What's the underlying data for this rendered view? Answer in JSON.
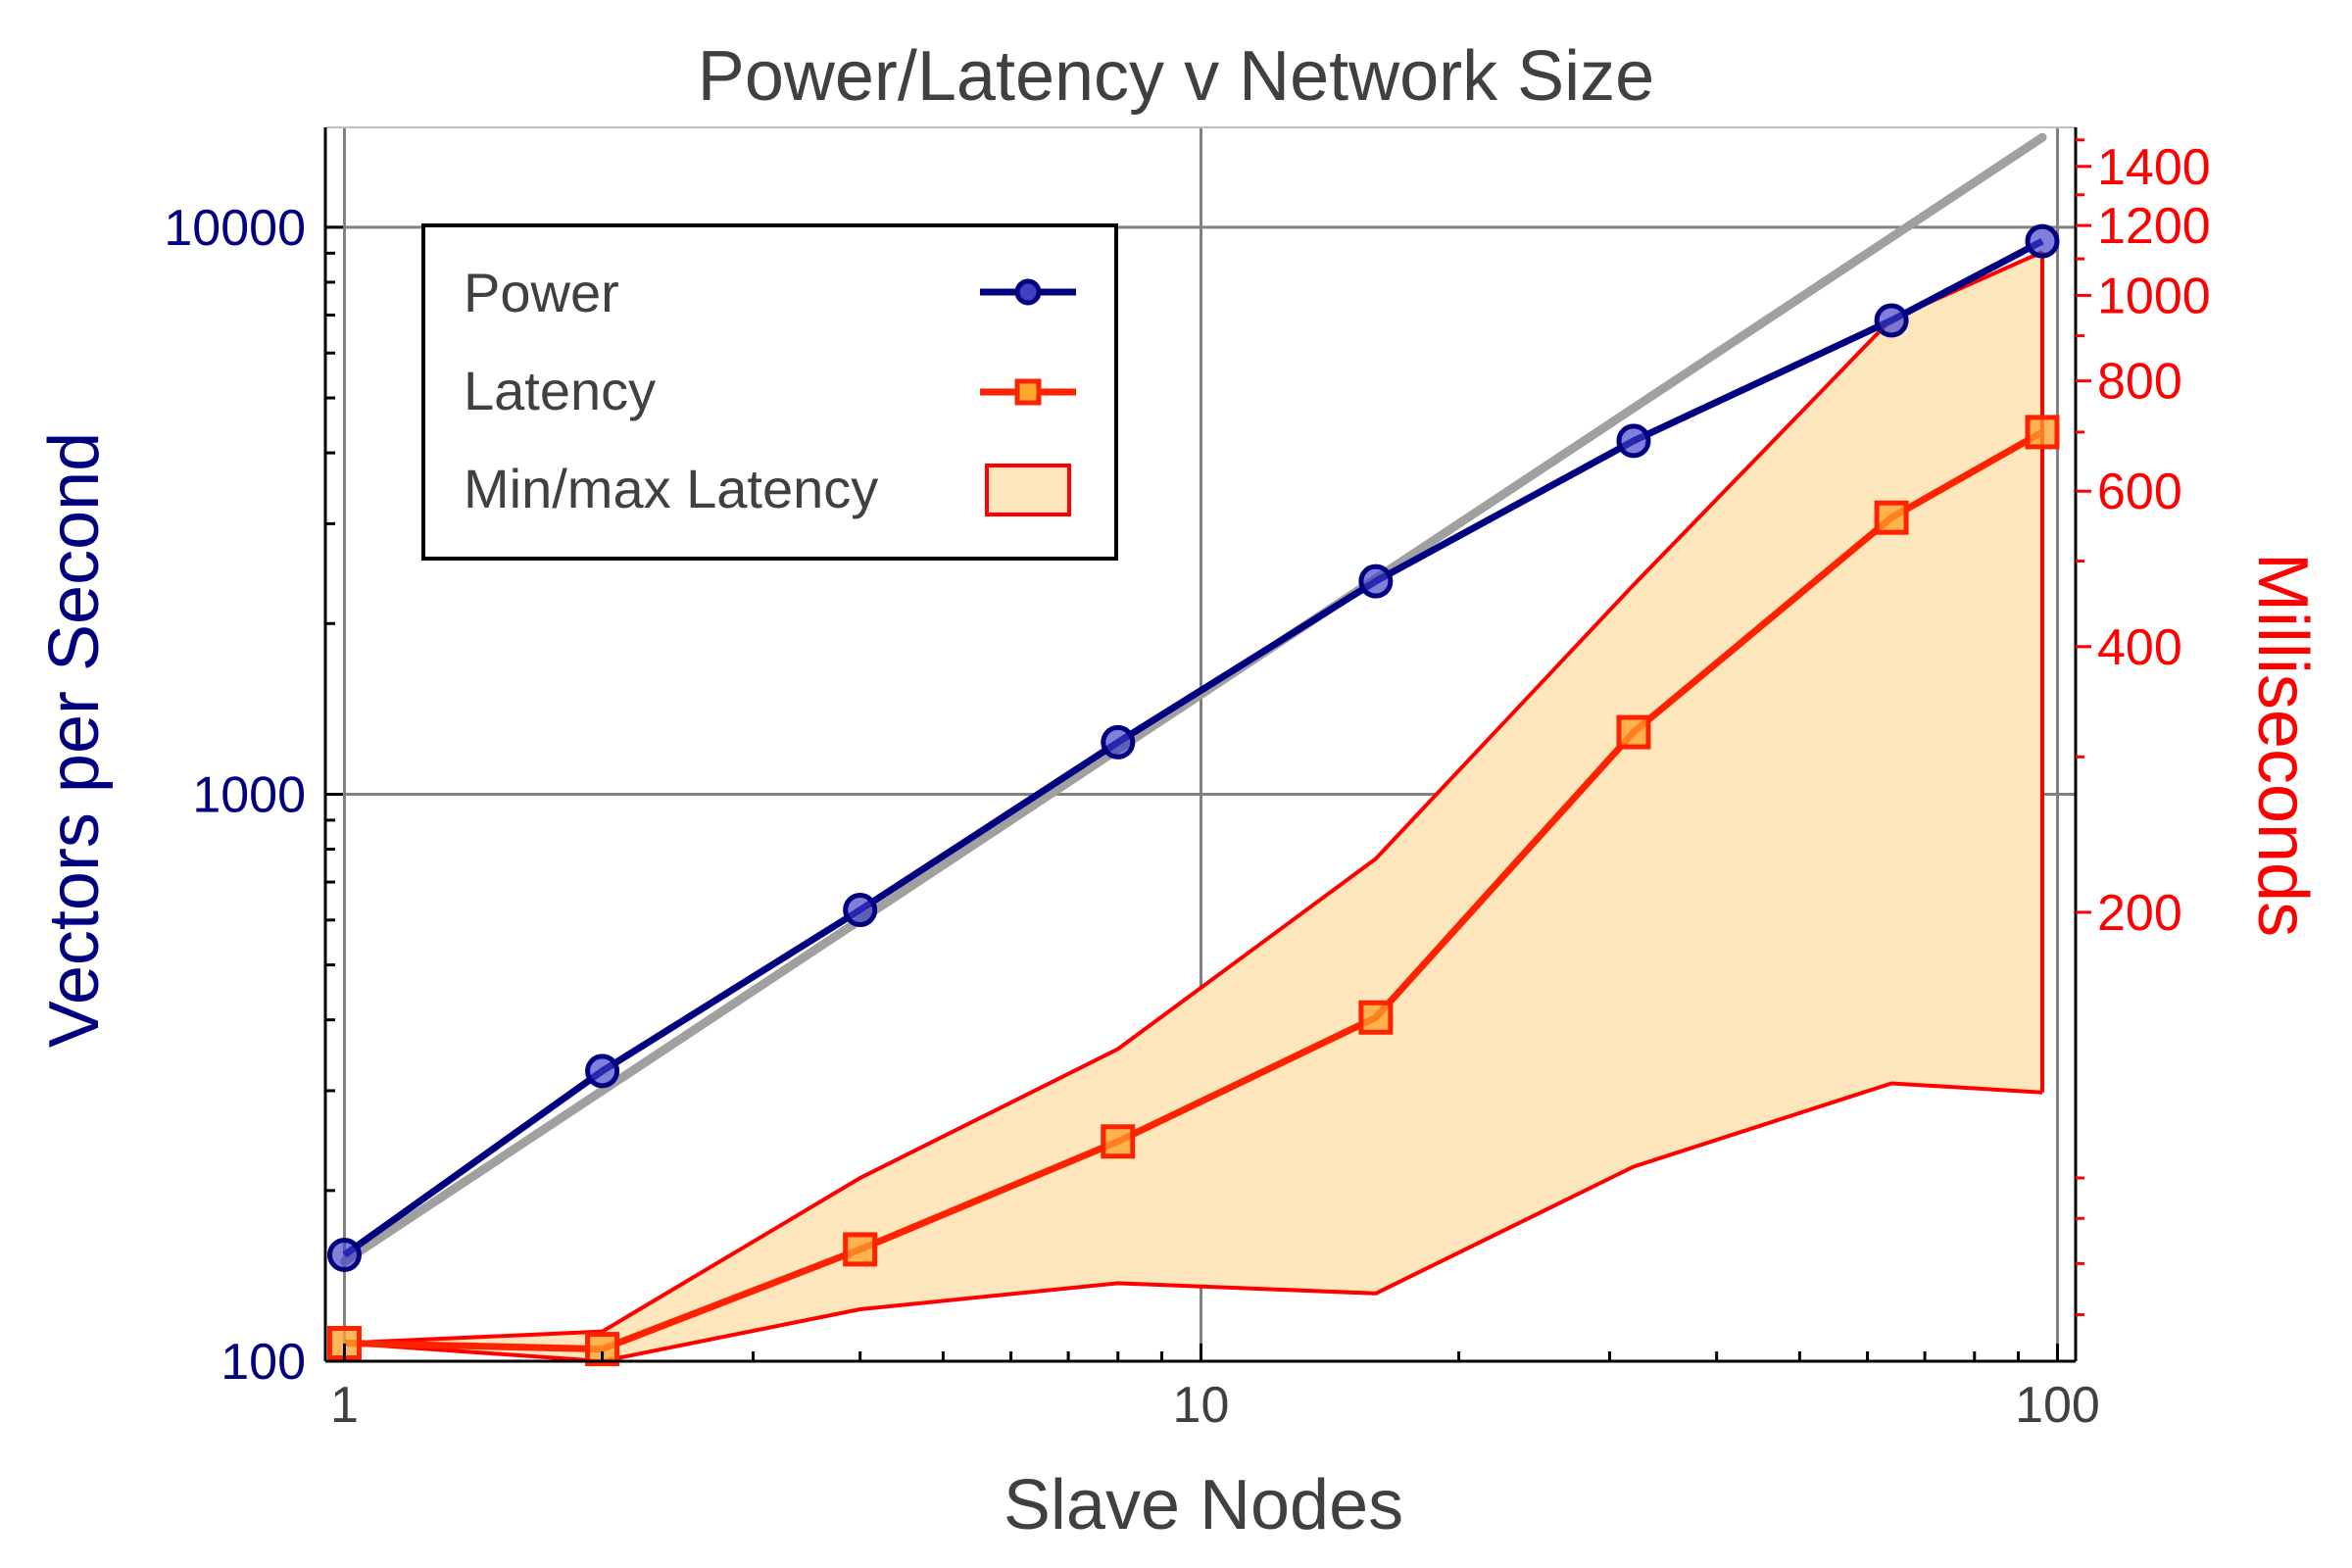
{
  "chart_data": {
    "type": "line",
    "title": "Power/Latency v Network Size",
    "xlabel": "Slave Nodes",
    "ylabel_left": "Vectors per Second",
    "ylabel_right": "Milliseconds",
    "x_scale": "log",
    "y_left_scale": "log",
    "y_right_scale": "log",
    "xlim": [
      0.95,
      105
    ],
    "ylim_left": [
      100,
      15000
    ],
    "ylim_right": [
      62,
      1550
    ],
    "x_ticks": [
      "1",
      "10",
      "100"
    ],
    "y_left_ticks": [
      "100",
      "1000",
      "10000"
    ],
    "y_right_ticks": [
      "200",
      "400",
      "600",
      "800",
      "1000",
      "1200",
      "1400"
    ],
    "grid": true,
    "legend_position": "top-left",
    "x": [
      1,
      2,
      4,
      8,
      16,
      32,
      64,
      96
    ],
    "series": [
      {
        "name": "Power",
        "axis": "left",
        "color": "#000080",
        "marker": "circle",
        "values": [
          154,
          325,
          625,
          1235,
          2375,
          4200,
          6850,
          9450
        ]
      },
      {
        "name": "Latency",
        "axis": "right",
        "color": "#ff2200",
        "marker": "square",
        "values": [
          65,
          64,
          83,
          110,
          152,
          320,
          560,
          700
        ]
      },
      {
        "name": "Min/max Latency",
        "axis": "right",
        "type": "area",
        "fill": "#fde6bb",
        "edge": "#ff0000",
        "upper": [
          65,
          67,
          100,
          140,
          230,
          470,
          940,
          1120
        ],
        "lower": [
          65,
          62,
          71,
          76,
          74,
          103,
          128,
          125
        ]
      }
    ],
    "reference_line": {
      "color": "#a0a0a0",
      "x": [
        1,
        96
      ],
      "y": [
        150,
        14400
      ]
    }
  }
}
